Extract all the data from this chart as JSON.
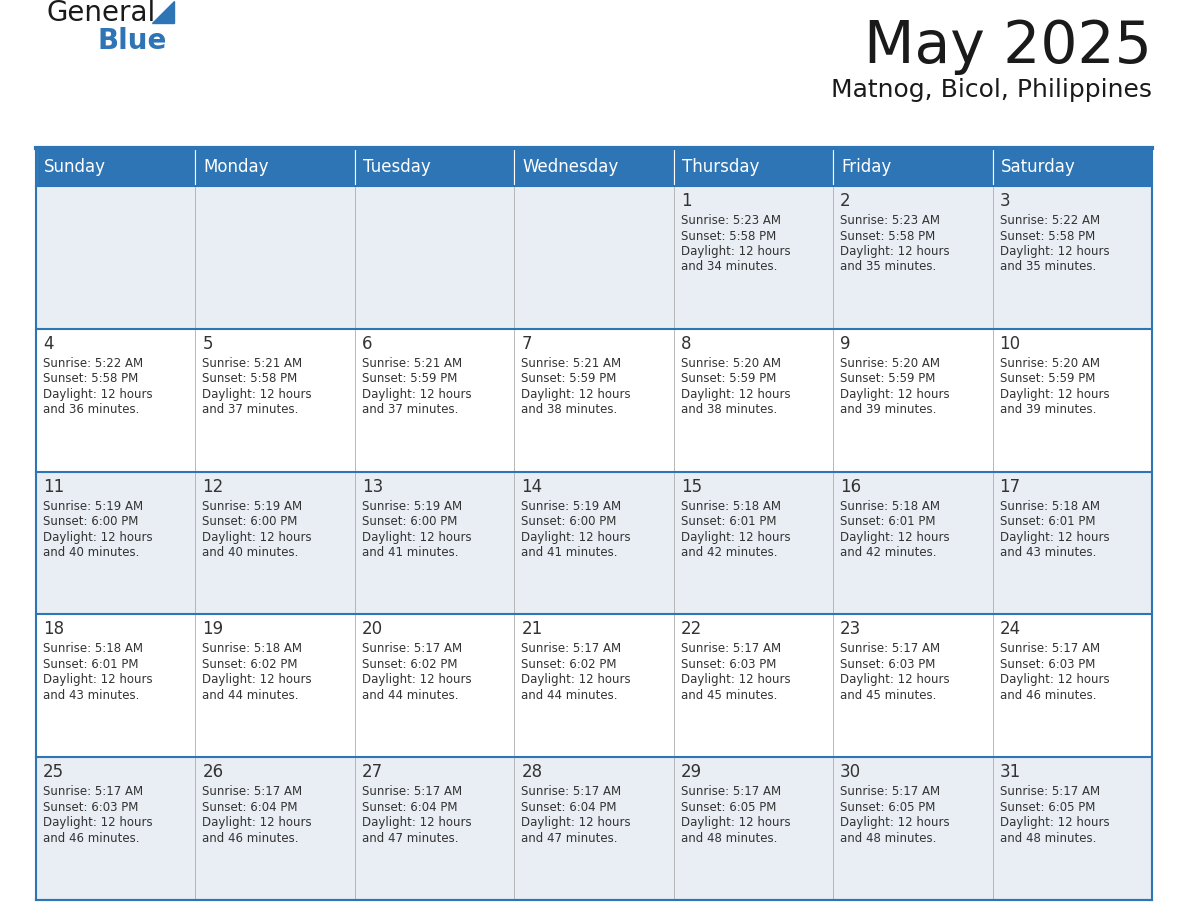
{
  "title": "May 2025",
  "subtitle": "Matnog, Bicol, Philippines",
  "header_color": "#2E75B6",
  "header_text_color": "#FFFFFF",
  "row_even_color": "#FFFFFF",
  "row_odd_color": "#E8EEF4",
  "border_color": "#2E75B6",
  "cell_border_color": "#AAAAAA",
  "day_headers": [
    "Sunday",
    "Monday",
    "Tuesday",
    "Wednesday",
    "Thursday",
    "Friday",
    "Saturday"
  ],
  "text_color": "#333333",
  "logo_color": "#2E75B6",
  "days": [
    {
      "day": 1,
      "col": 4,
      "row": 0,
      "sunrise": "5:23 AM",
      "sunset": "5:58 PM",
      "daylight_h": "12 hours",
      "daylight_m": "34 minutes."
    },
    {
      "day": 2,
      "col": 5,
      "row": 0,
      "sunrise": "5:23 AM",
      "sunset": "5:58 PM",
      "daylight_h": "12 hours",
      "daylight_m": "35 minutes."
    },
    {
      "day": 3,
      "col": 6,
      "row": 0,
      "sunrise": "5:22 AM",
      "sunset": "5:58 PM",
      "daylight_h": "12 hours",
      "daylight_m": "35 minutes."
    },
    {
      "day": 4,
      "col": 0,
      "row": 1,
      "sunrise": "5:22 AM",
      "sunset": "5:58 PM",
      "daylight_h": "12 hours",
      "daylight_m": "36 minutes."
    },
    {
      "day": 5,
      "col": 1,
      "row": 1,
      "sunrise": "5:21 AM",
      "sunset": "5:58 PM",
      "daylight_h": "12 hours",
      "daylight_m": "37 minutes."
    },
    {
      "day": 6,
      "col": 2,
      "row": 1,
      "sunrise": "5:21 AM",
      "sunset": "5:59 PM",
      "daylight_h": "12 hours",
      "daylight_m": "37 minutes."
    },
    {
      "day": 7,
      "col": 3,
      "row": 1,
      "sunrise": "5:21 AM",
      "sunset": "5:59 PM",
      "daylight_h": "12 hours",
      "daylight_m": "38 minutes."
    },
    {
      "day": 8,
      "col": 4,
      "row": 1,
      "sunrise": "5:20 AM",
      "sunset": "5:59 PM",
      "daylight_h": "12 hours",
      "daylight_m": "38 minutes."
    },
    {
      "day": 9,
      "col": 5,
      "row": 1,
      "sunrise": "5:20 AM",
      "sunset": "5:59 PM",
      "daylight_h": "12 hours",
      "daylight_m": "39 minutes."
    },
    {
      "day": 10,
      "col": 6,
      "row": 1,
      "sunrise": "5:20 AM",
      "sunset": "5:59 PM",
      "daylight_h": "12 hours",
      "daylight_m": "39 minutes."
    },
    {
      "day": 11,
      "col": 0,
      "row": 2,
      "sunrise": "5:19 AM",
      "sunset": "6:00 PM",
      "daylight_h": "12 hours",
      "daylight_m": "40 minutes."
    },
    {
      "day": 12,
      "col": 1,
      "row": 2,
      "sunrise": "5:19 AM",
      "sunset": "6:00 PM",
      "daylight_h": "12 hours",
      "daylight_m": "40 minutes."
    },
    {
      "day": 13,
      "col": 2,
      "row": 2,
      "sunrise": "5:19 AM",
      "sunset": "6:00 PM",
      "daylight_h": "12 hours",
      "daylight_m": "41 minutes."
    },
    {
      "day": 14,
      "col": 3,
      "row": 2,
      "sunrise": "5:19 AM",
      "sunset": "6:00 PM",
      "daylight_h": "12 hours",
      "daylight_m": "41 minutes."
    },
    {
      "day": 15,
      "col": 4,
      "row": 2,
      "sunrise": "5:18 AM",
      "sunset": "6:01 PM",
      "daylight_h": "12 hours",
      "daylight_m": "42 minutes."
    },
    {
      "day": 16,
      "col": 5,
      "row": 2,
      "sunrise": "5:18 AM",
      "sunset": "6:01 PM",
      "daylight_h": "12 hours",
      "daylight_m": "42 minutes."
    },
    {
      "day": 17,
      "col": 6,
      "row": 2,
      "sunrise": "5:18 AM",
      "sunset": "6:01 PM",
      "daylight_h": "12 hours",
      "daylight_m": "43 minutes."
    },
    {
      "day": 18,
      "col": 0,
      "row": 3,
      "sunrise": "5:18 AM",
      "sunset": "6:01 PM",
      "daylight_h": "12 hours",
      "daylight_m": "43 minutes."
    },
    {
      "day": 19,
      "col": 1,
      "row": 3,
      "sunrise": "5:18 AM",
      "sunset": "6:02 PM",
      "daylight_h": "12 hours",
      "daylight_m": "44 minutes."
    },
    {
      "day": 20,
      "col": 2,
      "row": 3,
      "sunrise": "5:17 AM",
      "sunset": "6:02 PM",
      "daylight_h": "12 hours",
      "daylight_m": "44 minutes."
    },
    {
      "day": 21,
      "col": 3,
      "row": 3,
      "sunrise": "5:17 AM",
      "sunset": "6:02 PM",
      "daylight_h": "12 hours",
      "daylight_m": "44 minutes."
    },
    {
      "day": 22,
      "col": 4,
      "row": 3,
      "sunrise": "5:17 AM",
      "sunset": "6:03 PM",
      "daylight_h": "12 hours",
      "daylight_m": "45 minutes."
    },
    {
      "day": 23,
      "col": 5,
      "row": 3,
      "sunrise": "5:17 AM",
      "sunset": "6:03 PM",
      "daylight_h": "12 hours",
      "daylight_m": "45 minutes."
    },
    {
      "day": 24,
      "col": 6,
      "row": 3,
      "sunrise": "5:17 AM",
      "sunset": "6:03 PM",
      "daylight_h": "12 hours",
      "daylight_m": "46 minutes."
    },
    {
      "day": 25,
      "col": 0,
      "row": 4,
      "sunrise": "5:17 AM",
      "sunset": "6:03 PM",
      "daylight_h": "12 hours",
      "daylight_m": "46 minutes."
    },
    {
      "day": 26,
      "col": 1,
      "row": 4,
      "sunrise": "5:17 AM",
      "sunset": "6:04 PM",
      "daylight_h": "12 hours",
      "daylight_m": "46 minutes."
    },
    {
      "day": 27,
      "col": 2,
      "row": 4,
      "sunrise": "5:17 AM",
      "sunset": "6:04 PM",
      "daylight_h": "12 hours",
      "daylight_m": "47 minutes."
    },
    {
      "day": 28,
      "col": 3,
      "row": 4,
      "sunrise": "5:17 AM",
      "sunset": "6:04 PM",
      "daylight_h": "12 hours",
      "daylight_m": "47 minutes."
    },
    {
      "day": 29,
      "col": 4,
      "row": 4,
      "sunrise": "5:17 AM",
      "sunset": "6:05 PM",
      "daylight_h": "12 hours",
      "daylight_m": "48 minutes."
    },
    {
      "day": 30,
      "col": 5,
      "row": 4,
      "sunrise": "5:17 AM",
      "sunset": "6:05 PM",
      "daylight_h": "12 hours",
      "daylight_m": "48 minutes."
    },
    {
      "day": 31,
      "col": 6,
      "row": 4,
      "sunrise": "5:17 AM",
      "sunset": "6:05 PM",
      "daylight_h": "12 hours",
      "daylight_m": "48 minutes."
    }
  ]
}
